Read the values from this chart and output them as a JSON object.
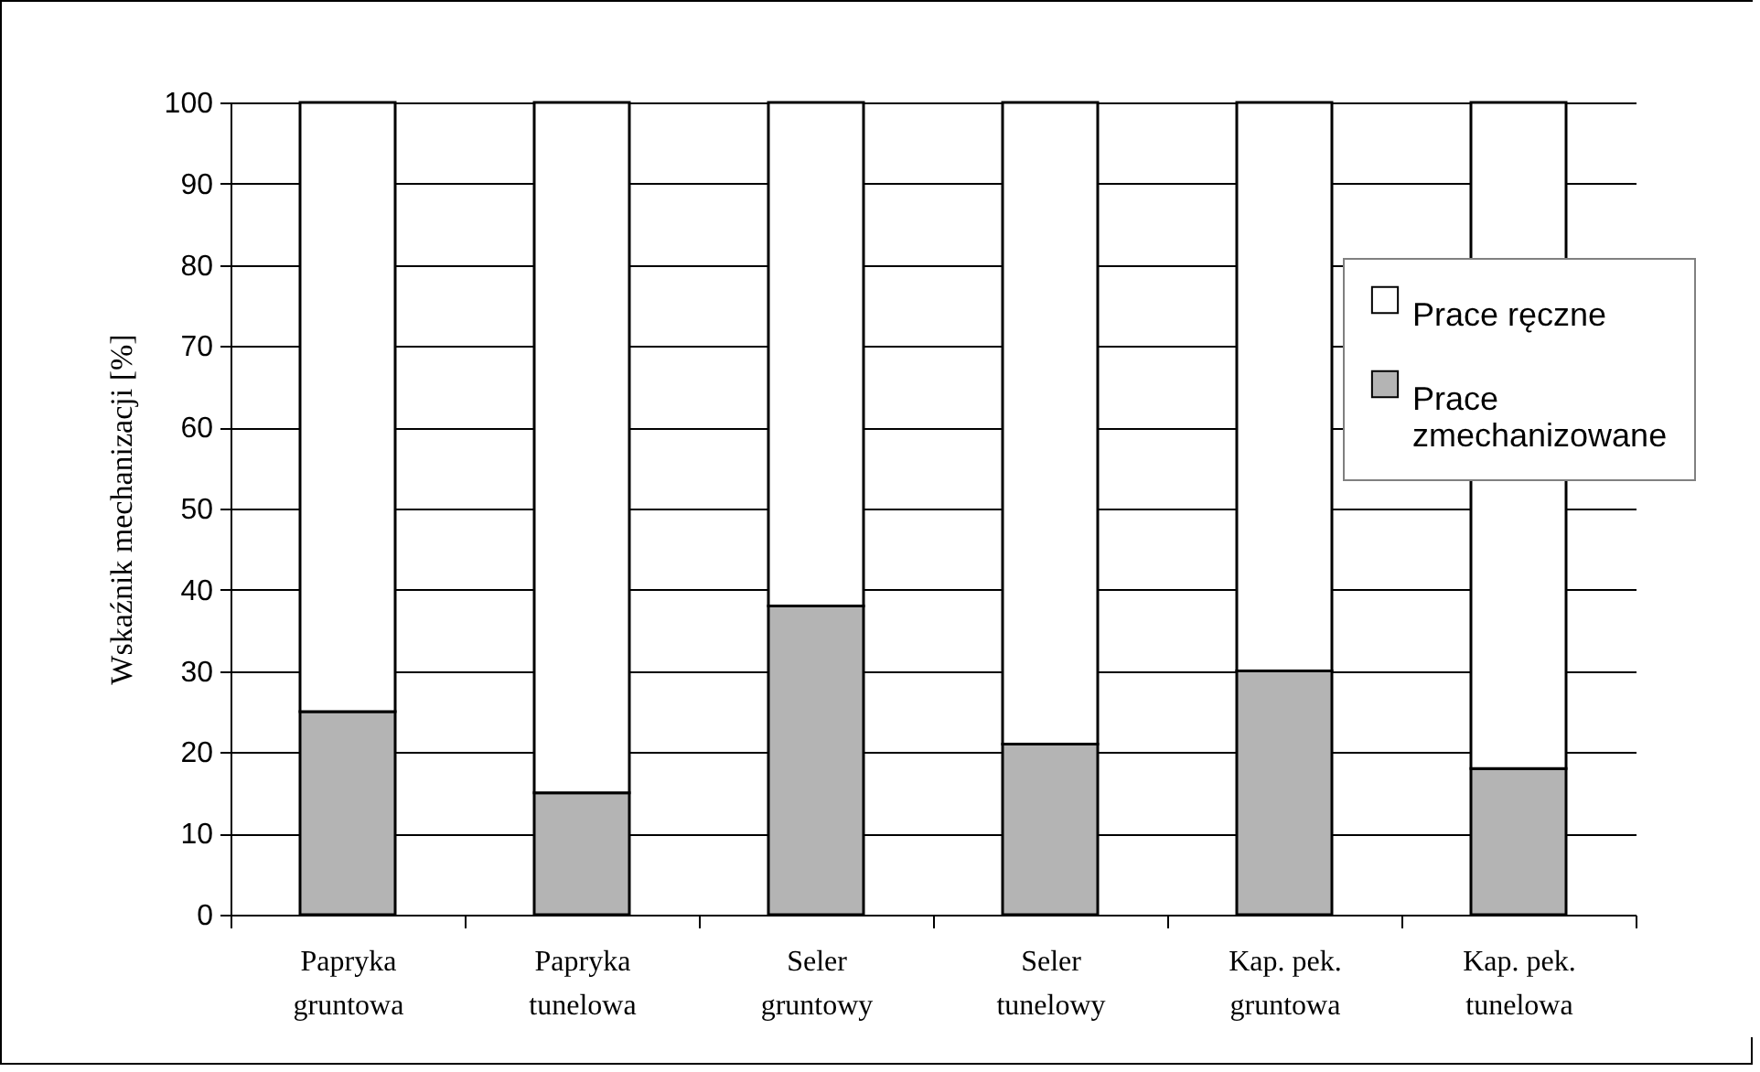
{
  "chart_data": {
    "type": "bar",
    "stacked": true,
    "ylabel": "Wskaźnik mechanizacji [%]",
    "categories": [
      "Papryka gruntowa",
      "Papryka tunelowa",
      "Seler gruntowy",
      "Seler tunelowy",
      "Kap. pek. gruntowa",
      "Kap. pek. tunelowa"
    ],
    "series": [
      {
        "name": "Prace zmechanizowane",
        "color": "#b4b4b4",
        "values": [
          25,
          15,
          38,
          21,
          30,
          18
        ]
      },
      {
        "name": "Prace ręczne",
        "color": "#ffffff",
        "values": [
          75,
          85,
          62,
          79,
          70,
          82
        ]
      }
    ],
    "ylim": [
      0,
      100
    ],
    "yticks": [
      0,
      10,
      20,
      30,
      40,
      50,
      60,
      70,
      80,
      90,
      100
    ],
    "grid": "y",
    "legend": "top right"
  }
}
